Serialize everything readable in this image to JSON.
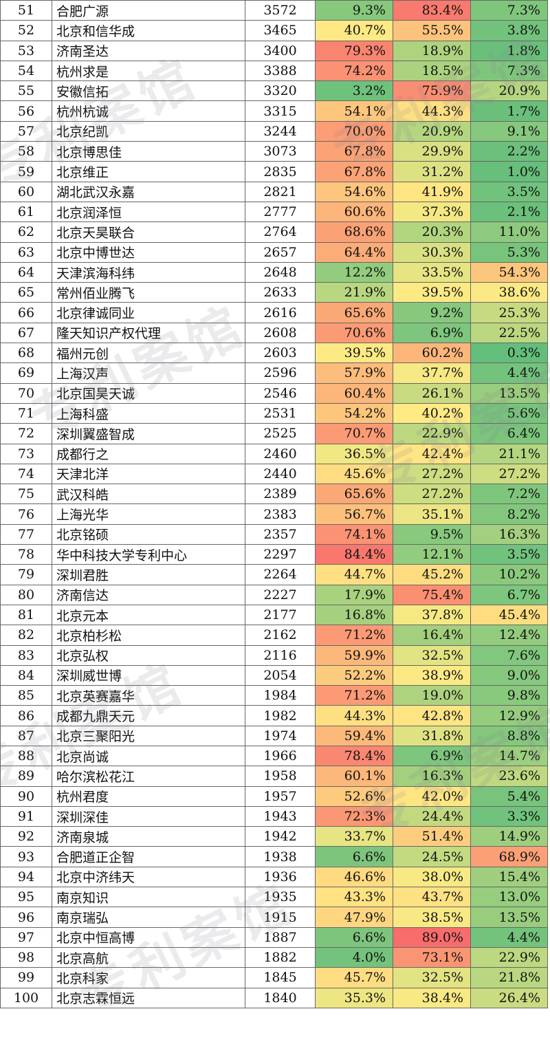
{
  "watermark_text": "专利案馆",
  "colors": {
    "green": "#63be7b",
    "yellow": "#ffeb84",
    "red": "#f8696b"
  },
  "rows": [
    {
      "rank": "51",
      "name": "合肥广源",
      "count": "3572",
      "p1": "9.3%",
      "p2": "83.4%",
      "p3": "7.3%"
    },
    {
      "rank": "52",
      "name": "北京和信华成",
      "count": "3465",
      "p1": "40.7%",
      "p2": "55.5%",
      "p3": "3.8%"
    },
    {
      "rank": "53",
      "name": "济南圣达",
      "count": "3400",
      "p1": "79.3%",
      "p2": "18.9%",
      "p3": "1.8%"
    },
    {
      "rank": "54",
      "name": "杭州求是",
      "count": "3388",
      "p1": "74.2%",
      "p2": "18.5%",
      "p3": "7.3%"
    },
    {
      "rank": "55",
      "name": "安徽信拓",
      "count": "3320",
      "p1": "3.2%",
      "p2": "75.9%",
      "p3": "20.9%"
    },
    {
      "rank": "56",
      "name": "杭州杭诚",
      "count": "3315",
      "p1": "54.1%",
      "p2": "44.3%",
      "p3": "1.7%"
    },
    {
      "rank": "57",
      "name": "北京纪凯",
      "count": "3244",
      "p1": "70.0%",
      "p2": "20.9%",
      "p3": "9.1%"
    },
    {
      "rank": "58",
      "name": "北京博思佳",
      "count": "3073",
      "p1": "67.8%",
      "p2": "29.9%",
      "p3": "2.2%"
    },
    {
      "rank": "59",
      "name": "北京维正",
      "count": "2835",
      "p1": "67.8%",
      "p2": "31.2%",
      "p3": "1.0%"
    },
    {
      "rank": "60",
      "name": "湖北武汉永嘉",
      "count": "2821",
      "p1": "54.6%",
      "p2": "41.9%",
      "p3": "3.5%"
    },
    {
      "rank": "61",
      "name": "北京润泽恒",
      "count": "2777",
      "p1": "60.6%",
      "p2": "37.3%",
      "p3": "2.1%"
    },
    {
      "rank": "62",
      "name": "北京天昊联合",
      "count": "2764",
      "p1": "68.6%",
      "p2": "20.3%",
      "p3": "11.0%"
    },
    {
      "rank": "63",
      "name": "北京中博世达",
      "count": "2657",
      "p1": "64.4%",
      "p2": "30.3%",
      "p3": "5.3%"
    },
    {
      "rank": "64",
      "name": "天津滨海科纬",
      "count": "2648",
      "p1": "12.2%",
      "p2": "33.5%",
      "p3": "54.3%"
    },
    {
      "rank": "65",
      "name": "常州佰业腾飞",
      "count": "2633",
      "p1": "21.9%",
      "p2": "39.5%",
      "p3": "38.6%"
    },
    {
      "rank": "66",
      "name": "北京律诚同业",
      "count": "2616",
      "p1": "65.6%",
      "p2": "9.2%",
      "p3": "25.3%"
    },
    {
      "rank": "67",
      "name": "隆天知识产权代理",
      "count": "2608",
      "p1": "70.6%",
      "p2": "6.9%",
      "p3": "22.5%"
    },
    {
      "rank": "68",
      "name": "福州元创",
      "count": "2603",
      "p1": "39.5%",
      "p2": "60.2%",
      "p3": "0.3%"
    },
    {
      "rank": "69",
      "name": "上海汉声",
      "count": "2596",
      "p1": "57.9%",
      "p2": "37.7%",
      "p3": "4.4%"
    },
    {
      "rank": "70",
      "name": "北京国昊天诚",
      "count": "2546",
      "p1": "60.4%",
      "p2": "26.1%",
      "p3": "13.5%"
    },
    {
      "rank": "71",
      "name": "上海科盛",
      "count": "2531",
      "p1": "54.2%",
      "p2": "40.2%",
      "p3": "5.6%"
    },
    {
      "rank": "72",
      "name": "深圳翼盛智成",
      "count": "2525",
      "p1": "70.7%",
      "p2": "22.9%",
      "p3": "6.4%"
    },
    {
      "rank": "73",
      "name": "成都行之",
      "count": "2460",
      "p1": "36.5%",
      "p2": "42.4%",
      "p3": "21.1%"
    },
    {
      "rank": "74",
      "name": "天津北洋",
      "count": "2440",
      "p1": "45.6%",
      "p2": "27.2%",
      "p3": "27.2%"
    },
    {
      "rank": "75",
      "name": "武汉科皓",
      "count": "2389",
      "p1": "65.6%",
      "p2": "27.2%",
      "p3": "7.2%"
    },
    {
      "rank": "76",
      "name": "上海光华",
      "count": "2383",
      "p1": "56.7%",
      "p2": "35.1%",
      "p3": "8.2%"
    },
    {
      "rank": "77",
      "name": "北京铭硕",
      "count": "2357",
      "p1": "74.1%",
      "p2": "9.5%",
      "p3": "16.3%"
    },
    {
      "rank": "78",
      "name": "华中科技大学专利中心",
      "count": "2297",
      "p1": "84.4%",
      "p2": "12.1%",
      "p3": "3.5%"
    },
    {
      "rank": "79",
      "name": "深圳君胜",
      "count": "2264",
      "p1": "44.7%",
      "p2": "45.2%",
      "p3": "10.2%"
    },
    {
      "rank": "80",
      "name": "济南信达",
      "count": "2227",
      "p1": "17.9%",
      "p2": "75.4%",
      "p3": "6.7%"
    },
    {
      "rank": "81",
      "name": "北京元本",
      "count": "2177",
      "p1": "16.8%",
      "p2": "37.8%",
      "p3": "45.4%"
    },
    {
      "rank": "82",
      "name": "北京柏杉松",
      "count": "2162",
      "p1": "71.2%",
      "p2": "16.4%",
      "p3": "12.4%"
    },
    {
      "rank": "83",
      "name": "北京弘权",
      "count": "2116",
      "p1": "59.9%",
      "p2": "32.5%",
      "p3": "7.6%"
    },
    {
      "rank": "84",
      "name": "深圳威世博",
      "count": "2054",
      "p1": "52.2%",
      "p2": "38.9%",
      "p3": "9.0%"
    },
    {
      "rank": "85",
      "name": "北京英赛嘉华",
      "count": "1984",
      "p1": "71.2%",
      "p2": "19.0%",
      "p3": "9.8%"
    },
    {
      "rank": "86",
      "name": "成都九鼎天元",
      "count": "1982",
      "p1": "44.3%",
      "p2": "42.8%",
      "p3": "12.9%"
    },
    {
      "rank": "87",
      "name": "北京三聚阳光",
      "count": "1974",
      "p1": "59.4%",
      "p2": "31.8%",
      "p3": "8.8%"
    },
    {
      "rank": "88",
      "name": "北京尚诚",
      "count": "1966",
      "p1": "78.4%",
      "p2": "6.9%",
      "p3": "14.7%"
    },
    {
      "rank": "89",
      "name": "哈尔滨松花江",
      "count": "1958",
      "p1": "60.1%",
      "p2": "16.3%",
      "p3": "23.6%"
    },
    {
      "rank": "90",
      "name": "杭州君度",
      "count": "1957",
      "p1": "52.6%",
      "p2": "42.0%",
      "p3": "5.4%"
    },
    {
      "rank": "91",
      "name": "深圳深佳",
      "count": "1943",
      "p1": "72.3%",
      "p2": "24.4%",
      "p3": "3.3%"
    },
    {
      "rank": "92",
      "name": "济南泉城",
      "count": "1942",
      "p1": "33.7%",
      "p2": "51.4%",
      "p3": "14.9%"
    },
    {
      "rank": "93",
      "name": "合肥道正企智",
      "count": "1938",
      "p1": "6.6%",
      "p2": "24.5%",
      "p3": "68.9%"
    },
    {
      "rank": "94",
      "name": "北京中济纬天",
      "count": "1936",
      "p1": "46.6%",
      "p2": "38.0%",
      "p3": "15.4%"
    },
    {
      "rank": "95",
      "name": "南京知识",
      "count": "1935",
      "p1": "43.3%",
      "p2": "43.7%",
      "p3": "13.0%"
    },
    {
      "rank": "96",
      "name": "南京瑞弘",
      "count": "1915",
      "p1": "47.9%",
      "p2": "38.5%",
      "p3": "13.5%"
    },
    {
      "rank": "97",
      "name": "北京中恒高博",
      "count": "1887",
      "p1": "6.6%",
      "p2": "89.0%",
      "p3": "4.4%"
    },
    {
      "rank": "98",
      "name": "北京高航",
      "count": "1882",
      "p1": "4.0%",
      "p2": "73.1%",
      "p3": "22.9%"
    },
    {
      "rank": "99",
      "name": "北京科家",
      "count": "1845",
      "p1": "45.7%",
      "p2": "32.5%",
      "p3": "21.8%"
    },
    {
      "rank": "100",
      "name": "北京志霖恒远",
      "count": "1840",
      "p1": "35.3%",
      "p2": "38.4%",
      "p3": "26.4%"
    }
  ]
}
